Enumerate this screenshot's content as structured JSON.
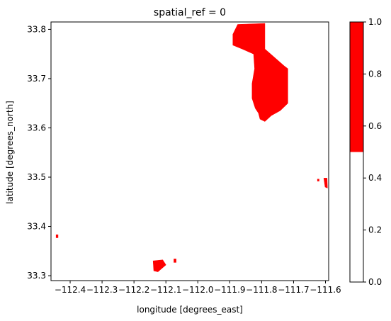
{
  "chart_data": {
    "type": "heatmap",
    "title": "spatial_ref = 0",
    "xlabel": "longitude [degrees_east]",
    "ylabel": "latitude [degrees_north]",
    "xlim": [
      -112.46,
      -111.59
    ],
    "ylim": [
      33.29,
      33.815
    ],
    "x_ticks": [
      -112.4,
      -112.3,
      -112.2,
      -112.1,
      -112.0,
      -111.9,
      -111.8,
      -111.7,
      -111.6
    ],
    "x_tick_labels": [
      "−112.4",
      "−112.3",
      "−112.2",
      "−112.1",
      "−112.0",
      "−111.9",
      "−111.8",
      "−111.7",
      "−111.6"
    ],
    "y_ticks": [
      33.3,
      33.4,
      33.5,
      33.6,
      33.7,
      33.8
    ],
    "y_tick_labels": [
      "33.3",
      "33.4",
      "33.5",
      "33.6",
      "33.7",
      "33.8"
    ],
    "colorbar": {
      "range": [
        0.0,
        1.0
      ],
      "ticks": [
        0.0,
        0.2,
        0.4,
        0.6,
        0.8,
        1.0
      ],
      "tick_labels": [
        "0.0",
        "0.2",
        "0.4",
        "0.6",
        "0.8",
        "1.0"
      ],
      "colors": [
        {
          "from": 0.0,
          "to": 0.5,
          "color": "#ffffff"
        },
        {
          "from": 0.5,
          "to": 1.0,
          "color": "#ff0000"
        }
      ]
    },
    "regions": [
      {
        "value": 1,
        "polygon": [
          [
            -111.89,
            33.79
          ],
          [
            -111.875,
            33.81
          ],
          [
            -111.79,
            33.812
          ],
          [
            -111.79,
            33.76
          ],
          [
            -111.73,
            33.726
          ],
          [
            -111.718,
            33.72
          ],
          [
            -111.718,
            33.65
          ],
          [
            -111.742,
            33.635
          ],
          [
            -111.77,
            33.625
          ],
          [
            -111.79,
            33.613
          ],
          [
            -111.805,
            33.618
          ],
          [
            -111.81,
            33.63
          ],
          [
            -111.82,
            33.64
          ],
          [
            -111.83,
            33.66
          ],
          [
            -111.83,
            33.69
          ],
          [
            -111.822,
            33.72
          ],
          [
            -111.825,
            33.75
          ],
          [
            -111.86,
            33.76
          ],
          [
            -111.89,
            33.768
          ]
        ]
      },
      {
        "value": 1,
        "polygon": [
          [
            -112.14,
            33.33
          ],
          [
            -112.11,
            33.332
          ],
          [
            -112.1,
            33.322
          ],
          [
            -112.125,
            33.308
          ],
          [
            -112.138,
            33.31
          ]
        ]
      },
      {
        "value": 1,
        "polygon": [
          [
            -112.075,
            33.334
          ],
          [
            -112.068,
            33.334
          ],
          [
            -112.068,
            33.327
          ],
          [
            -112.075,
            33.327
          ]
        ]
      },
      {
        "value": 1,
        "polygon": [
          [
            -111.605,
            33.498
          ],
          [
            -111.595,
            33.498
          ],
          [
            -111.594,
            33.478
          ],
          [
            -111.601,
            33.48
          ]
        ]
      },
      {
        "value": 1,
        "polygon": [
          [
            -111.625,
            33.496
          ],
          [
            -111.62,
            33.496
          ],
          [
            -111.62,
            33.492
          ],
          [
            -111.625,
            33.492
          ]
        ]
      },
      {
        "value": 1,
        "polygon": [
          [
            -112.444,
            33.383
          ],
          [
            -112.438,
            33.383
          ],
          [
            -112.438,
            33.377
          ],
          [
            -112.444,
            33.377
          ]
        ]
      }
    ]
  },
  "colors": {
    "fill": "#ff0000",
    "background": "#ffffff",
    "axis": "#000000"
  }
}
